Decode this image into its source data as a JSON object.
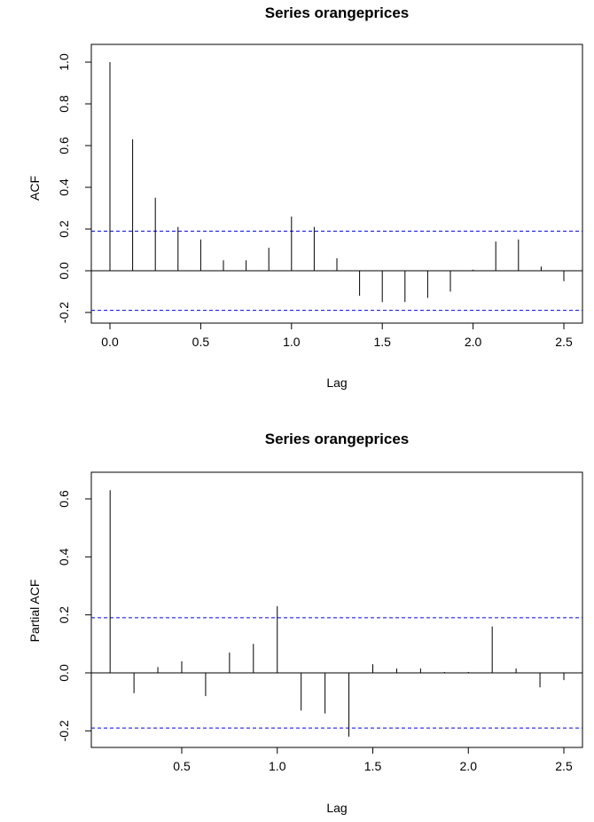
{
  "chart_data": [
    {
      "type": "bar",
      "title": "Series  orangeprices",
      "xlabel": "Lag",
      "ylabel": "ACF",
      "xlim": [
        -0.1,
        2.6
      ],
      "ylim": [
        -0.25,
        1.03
      ],
      "x_ticks": [
        0.0,
        0.5,
        1.0,
        1.5,
        2.0,
        2.5
      ],
      "x_tick_labels": [
        "0.0",
        "0.5",
        "1.0",
        "1.5",
        "2.0",
        "2.5"
      ],
      "y_ticks": [
        -0.2,
        0.0,
        0.2,
        0.4,
        0.6,
        0.8,
        1.0
      ],
      "y_tick_labels": [
        "-0.2",
        "0.0",
        "0.2",
        "0.4",
        "0.6",
        "0.8",
        "1.0"
      ],
      "confidence_bound": 0.19,
      "colors": {
        "spike": "#000000",
        "ci": "#0000ff"
      },
      "x": [
        0.0,
        0.125,
        0.25,
        0.375,
        0.5,
        0.625,
        0.75,
        0.875,
        1.0,
        1.125,
        1.25,
        1.375,
        1.5,
        1.625,
        1.75,
        1.875,
        2.0,
        2.125,
        2.25,
        2.375,
        2.5
      ],
      "values": [
        1.0,
        0.63,
        0.35,
        0.21,
        0.15,
        0.05,
        0.05,
        0.11,
        0.26,
        0.21,
        0.06,
        -0.12,
        -0.15,
        -0.15,
        -0.13,
        -0.1,
        0.005,
        0.14,
        0.15,
        0.02,
        -0.05
      ]
    },
    {
      "type": "bar",
      "title": "Series  orangeprices",
      "xlabel": "Lag",
      "ylabel": "Partial ACF",
      "xlim": [
        0.0,
        2.6
      ],
      "ylim": [
        -0.25,
        0.65
      ],
      "x_ticks": [
        0.5,
        1.0,
        1.5,
        2.0,
        2.5
      ],
      "x_tick_labels": [
        "0.5",
        "1.0",
        "1.5",
        "2.0",
        "2.5"
      ],
      "y_ticks": [
        -0.2,
        0.0,
        0.2,
        0.4,
        0.6
      ],
      "y_tick_labels": [
        "-0.2",
        "0.0",
        "0.2",
        "0.4",
        "0.6"
      ],
      "confidence_bound": 0.19,
      "colors": {
        "spike": "#000000",
        "ci": "#0000ff"
      },
      "x": [
        0.125,
        0.25,
        0.375,
        0.5,
        0.625,
        0.75,
        0.875,
        1.0,
        1.125,
        1.25,
        1.375,
        1.5,
        1.625,
        1.75,
        1.875,
        2.0,
        2.125,
        2.25,
        2.375,
        2.5
      ],
      "values": [
        0.63,
        -0.07,
        0.02,
        0.04,
        -0.08,
        0.07,
        0.1,
        0.23,
        -0.13,
        -0.14,
        -0.22,
        0.03,
        0.015,
        0.015,
        0.003,
        0.003,
        0.16,
        0.015,
        -0.05,
        -0.025
      ]
    }
  ]
}
